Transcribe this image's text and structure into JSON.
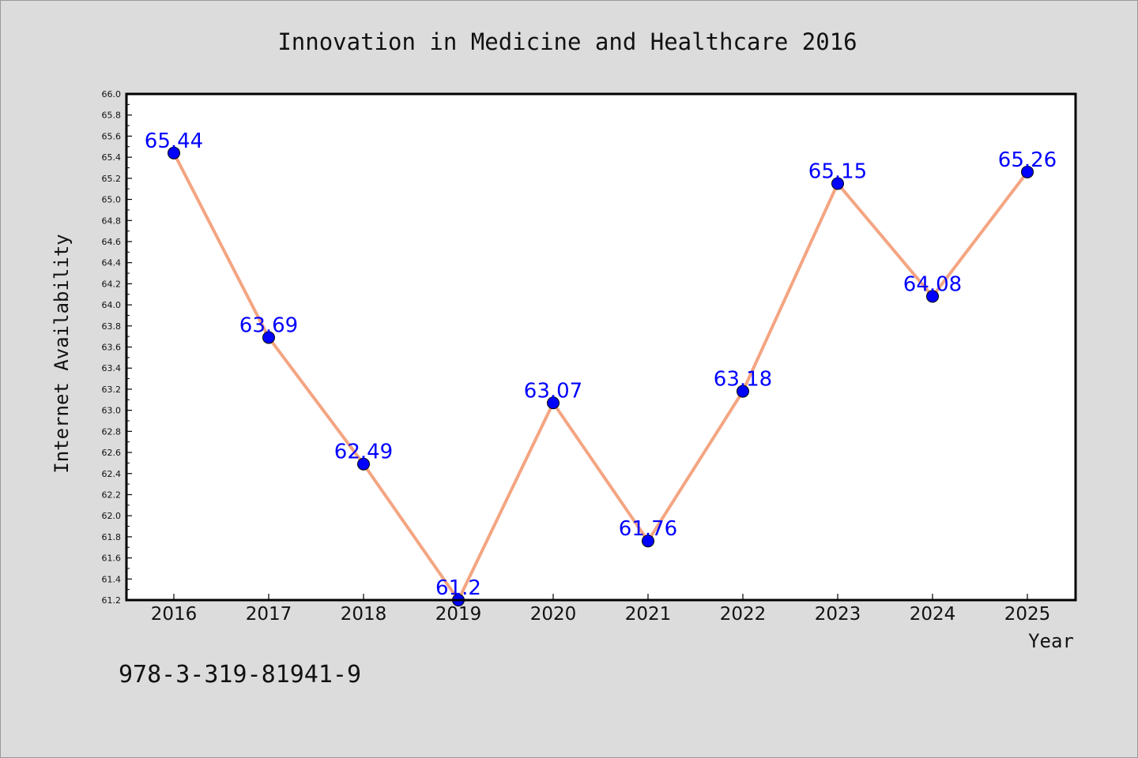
{
  "chart_data": {
    "type": "line",
    "title": "Innovation in Medicine and Healthcare 2016",
    "xlabel": "Year",
    "ylabel": "Internet Availability",
    "x": [
      "2016",
      "2017",
      "2018",
      "2019",
      "2020",
      "2021",
      "2022",
      "2023",
      "2024",
      "2025"
    ],
    "series": [
      {
        "values": [
          65.44,
          63.69,
          62.49,
          61.2,
          63.07,
          61.76,
          63.18,
          65.15,
          64.08,
          65.26
        ],
        "data_labels": [
          "65.44",
          "63.69",
          "62.49",
          "61.2",
          "63.07",
          "61.76",
          "63.18",
          "65.15",
          "64.08",
          "65.26"
        ],
        "line_color": "#f4a582",
        "marker_color": "#0000ff"
      }
    ],
    "ylim": [
      61.2,
      66.0
    ],
    "yticks": [
      "61.2",
      "61.4",
      "61.6",
      "61.8",
      "62.0",
      "62.2",
      "62.4",
      "62.6",
      "62.8",
      "63.0",
      "63.2",
      "63.4",
      "63.6",
      "63.8",
      "64.0",
      "64.2",
      "64.4",
      "64.6",
      "64.8",
      "65.0",
      "65.2",
      "65.4",
      "65.6",
      "65.8",
      "66.0"
    ],
    "grid": false,
    "legend": "none"
  },
  "footer": {
    "identifier": "978-3-319-81941-9"
  },
  "colors": {
    "background": "#dcdcdc",
    "plot_background": "#ffffff",
    "data_label": "#0000ff"
  }
}
